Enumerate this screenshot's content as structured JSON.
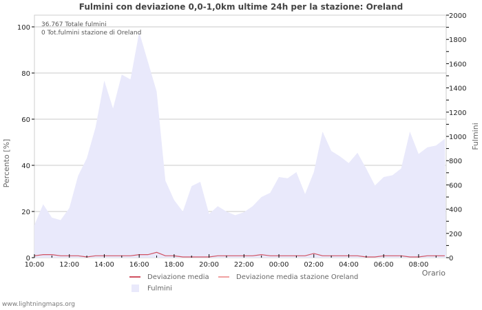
{
  "title": "Fulmini con deviazione 0,0-1,0km ultime 24h per la stazione: Oreland",
  "annotations": {
    "total": "36.767 Totale fulmini",
    "station_total": "0 Tot.fulmini stazione di Oreland"
  },
  "axes": {
    "left_label": "Percento   [%]",
    "right_label": "Fulmini",
    "x_label": "Orario",
    "left_ticks": [
      "0",
      "20",
      "40",
      "60",
      "80",
      "100"
    ],
    "right_ticks": [
      "0",
      "200",
      "400",
      "600",
      "800",
      "1000",
      "1200",
      "1400",
      "1600",
      "1800",
      "2000"
    ],
    "x_ticks": [
      "10:00",
      "12:00",
      "14:00",
      "16:00",
      "18:00",
      "20:00",
      "22:00",
      "00:00",
      "02:00",
      "04:00",
      "06:00",
      "08:00"
    ]
  },
  "legend": {
    "dev_media": "Deviazione media",
    "dev_station": "Deviazione media stazione Oreland",
    "fulmini": "Fulmini"
  },
  "colors": {
    "area": "#e9e9fb",
    "dev_media": "#d05060",
    "dev_station": "#f0a0a0",
    "grid": "#c8c8c8"
  },
  "footer": "www.lightningmaps.org",
  "chart_data": {
    "type": "area",
    "title": "Fulmini con deviazione 0,0-1,0km ultime 24h per la stazione: Oreland",
    "xlabel": "Orario",
    "ylabel": "Percento [%]",
    "y2label": "Fulmini",
    "ylim": [
      0,
      100
    ],
    "y2lim": [
      0,
      2000
    ],
    "grid": true,
    "legend_position": "bottom",
    "x": [
      "10:00",
      "10:30",
      "11:00",
      "11:30",
      "12:00",
      "12:30",
      "13:00",
      "13:30",
      "14:00",
      "14:30",
      "15:00",
      "15:30",
      "16:00",
      "16:30",
      "17:00",
      "17:30",
      "18:00",
      "18:30",
      "19:00",
      "19:30",
      "20:00",
      "20:30",
      "21:00",
      "21:30",
      "22:00",
      "22:30",
      "23:00",
      "23:30",
      "00:00",
      "00:30",
      "01:00",
      "01:30",
      "02:00",
      "02:30",
      "03:00",
      "03:30",
      "04:00",
      "04:30",
      "05:00",
      "05:30",
      "06:00",
      "06:30",
      "07:00",
      "07:30",
      "08:00",
      "08:30",
      "09:00",
      "09:30"
    ],
    "series": [
      {
        "name": "Fulmini",
        "axis": "right",
        "values": [
          270,
          440,
          330,
          310,
          410,
          675,
          820,
          1075,
          1460,
          1230,
          1510,
          1470,
          1860,
          1615,
          1370,
          635,
          475,
          380,
          590,
          625,
          360,
          425,
          380,
          350,
          375,
          425,
          500,
          535,
          665,
          655,
          705,
          525,
          705,
          1040,
          880,
          835,
          780,
          865,
          735,
          595,
          665,
          680,
          735,
          1040,
          855,
          910,
          925,
          980
        ]
      },
      {
        "name": "Deviazione media",
        "axis": "left",
        "values": [
          0.5,
          1,
          1,
          0.5,
          0.5,
          0.5,
          0,
          0.5,
          0.5,
          0.5,
          0.5,
          0.5,
          1,
          1,
          2,
          0.5,
          0.5,
          0,
          0,
          0,
          0,
          0.5,
          0.5,
          0.5,
          0.5,
          0.5,
          1,
          0.5,
          0.5,
          0.5,
          0.5,
          0.5,
          1.5,
          0.5,
          0.5,
          0.5,
          0.5,
          0.5,
          0,
          0,
          0.5,
          0.5,
          0.5,
          0,
          0,
          0.5,
          0.5,
          0.5
        ]
      },
      {
        "name": "Deviazione media stazione Oreland",
        "axis": "left",
        "values": []
      }
    ]
  }
}
